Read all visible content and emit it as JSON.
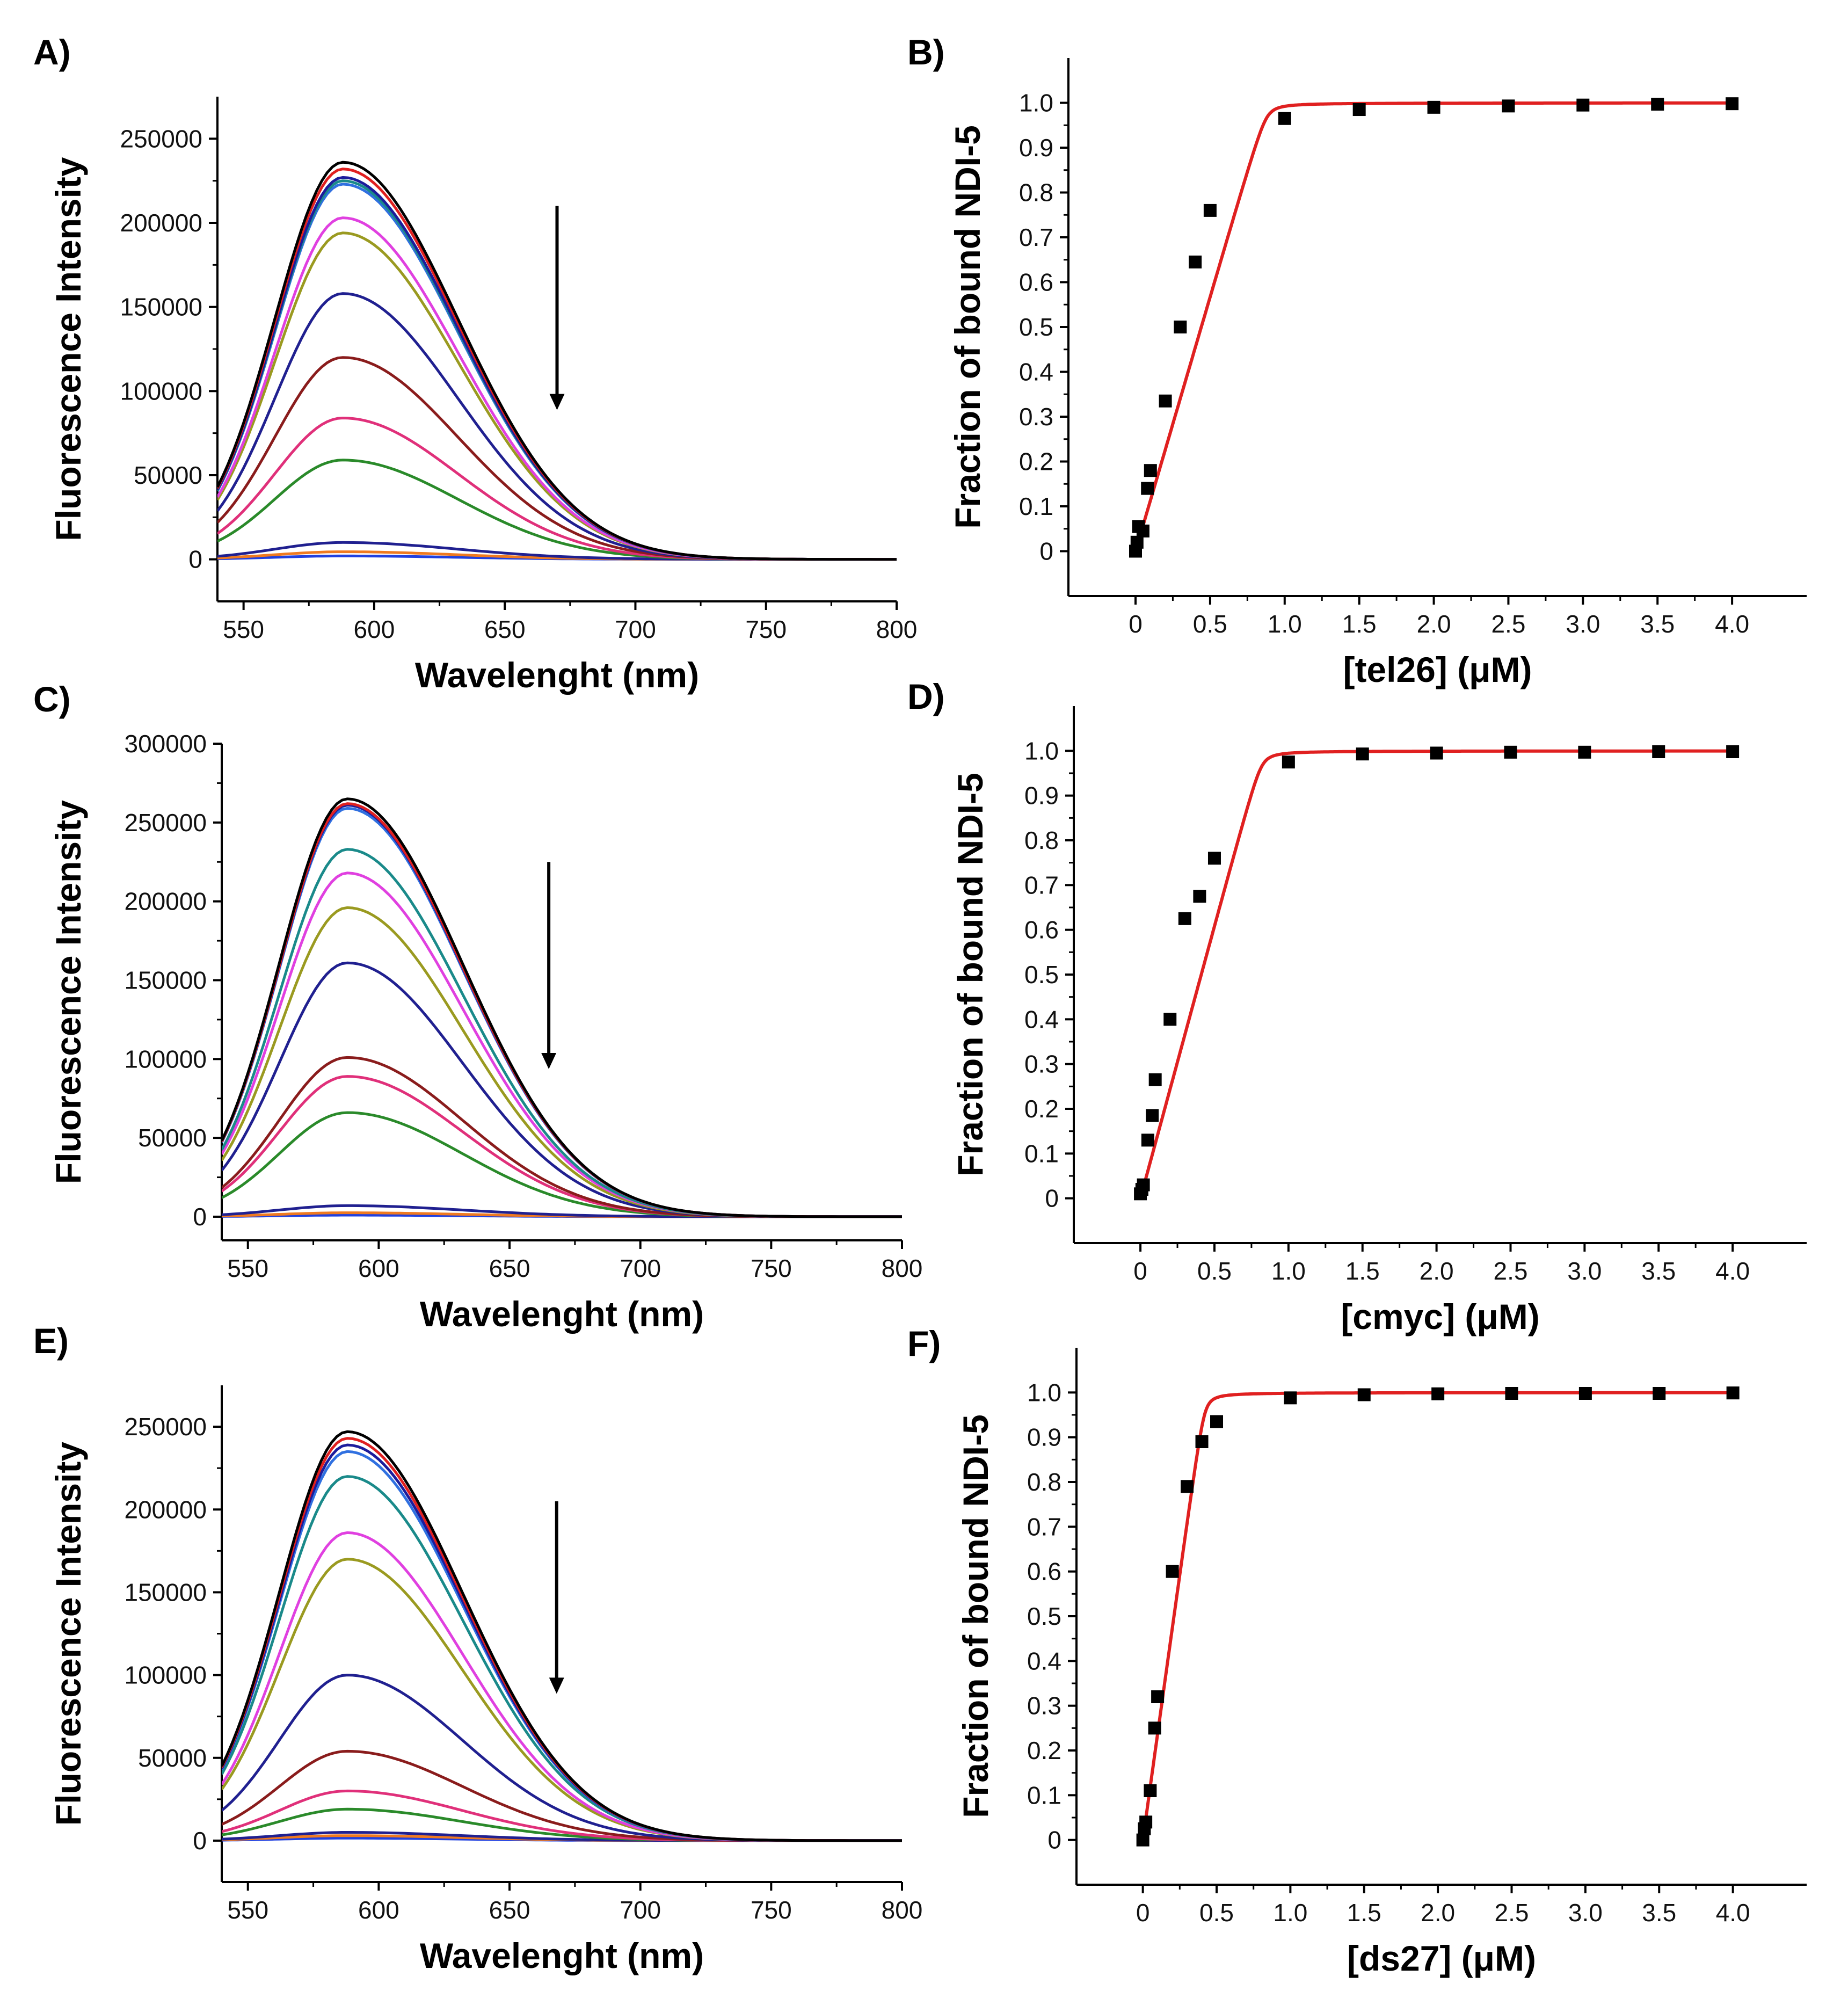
{
  "chart_data": [
    {
      "panel": "A)",
      "type": "line",
      "title": "",
      "xlabel": "Wavelenght (nm)",
      "ylabel": "Fluorescence Intensity",
      "xlim": [
        540,
        800
      ],
      "ylim": [
        -25000,
        275000
      ],
      "xticks": [
        550,
        600,
        650,
        700,
        750,
        800
      ],
      "yticks": [
        0,
        50000,
        100000,
        150000,
        200000,
        250000
      ],
      "peak_x": 588,
      "arrow": {
        "x": 670,
        "y_from": 210000,
        "y_to": 90000
      },
      "series": [
        {
          "name": "black",
          "color": "#000000",
          "peak": 236000
        },
        {
          "name": "red",
          "color": "#e02020",
          "peak": 232000
        },
        {
          "name": "dark-blue",
          "color": "#1c1c9c",
          "peak": 227000
        },
        {
          "name": "teal",
          "color": "#1a8a8a",
          "peak": 225000
        },
        {
          "name": "light-blue",
          "color": "#3070e0",
          "peak": 223000
        },
        {
          "name": "magenta",
          "color": "#e040e0",
          "peak": 203000
        },
        {
          "name": "olive",
          "color": "#9a9a20",
          "peak": 194000
        },
        {
          "name": "navy",
          "color": "#202090",
          "peak": 158000
        },
        {
          "name": "maroon",
          "color": "#8a1c1c",
          "peak": 120000
        },
        {
          "name": "pink",
          "color": "#e0307a",
          "peak": 84000
        },
        {
          "name": "green",
          "color": "#2a8a2a",
          "peak": 59000
        },
        {
          "name": "navy-low",
          "color": "#202090",
          "peak": 10000
        },
        {
          "name": "orange",
          "color": "#f07a20",
          "peak": 4500
        },
        {
          "name": "blue-low",
          "color": "#2040e0",
          "peak": 2000
        }
      ]
    },
    {
      "panel": "B)",
      "type": "scatter",
      "title": "",
      "xlabel": "[tel26] (μM)",
      "ylabel": "Fraction of bound NDI-5",
      "xlim": [
        -0.45,
        4.5
      ],
      "ylim": [
        -0.1,
        1.1
      ],
      "xticks": [
        0,
        0.5,
        1.0,
        1.5,
        2.0,
        2.5,
        3.0,
        3.5,
        4.0
      ],
      "xtick_labels": [
        "0",
        "0.5",
        "1.0",
        "1.5",
        "2.0",
        "2.5",
        "3.0",
        "3.5",
        "4.0"
      ],
      "yticks": [
        0,
        0.1,
        0.2,
        0.3,
        0.4,
        0.5,
        0.6,
        0.7,
        0.8,
        0.9,
        1.0
      ],
      "ytick_labels": [
        "0",
        "0.1",
        "0.2",
        "0.3",
        "0.4",
        "0.5",
        "0.6",
        "0.7",
        "0.8",
        "0.9",
        "1.0"
      ],
      "x": [
        0,
        0.01,
        0.02,
        0.05,
        0.08,
        0.1,
        0.2,
        0.3,
        0.4,
        0.5,
        1.0,
        1.5,
        2.0,
        2.5,
        3.0,
        3.5,
        4.0
      ],
      "y": [
        0,
        0.02,
        0.055,
        0.045,
        0.14,
        0.18,
        0.335,
        0.5,
        0.645,
        0.76,
        0.965,
        0.985,
        0.99,
        0.993,
        0.995,
        0.997,
        0.998
      ],
      "fit": {
        "color": "#e02020",
        "total": 0.88,
        "kd": 0.001
      }
    },
    {
      "panel": "C)",
      "type": "line",
      "title": "",
      "xlabel": "Wavelenght (nm)",
      "ylabel": "Fluorescence Intensity",
      "xlim": [
        540,
        800
      ],
      "ylim": [
        -15000,
        300000
      ],
      "xticks": [
        550,
        600,
        650,
        700,
        750,
        800
      ],
      "yticks": [
        0,
        50000,
        100000,
        150000,
        200000,
        250000,
        300000
      ],
      "peak_x": 588,
      "arrow": {
        "x": 665,
        "y_from": 225000,
        "y_to": 95000
      },
      "series": [
        {
          "name": "black",
          "color": "#000000",
          "peak": 265000
        },
        {
          "name": "red",
          "color": "#e02020",
          "peak": 262000
        },
        {
          "name": "dark-blue",
          "color": "#1c1c9c",
          "peak": 261000
        },
        {
          "name": "light-blue",
          "color": "#3070e0",
          "peak": 259000
        },
        {
          "name": "teal",
          "color": "#1a8a8a",
          "peak": 233000
        },
        {
          "name": "magenta",
          "color": "#e040e0",
          "peak": 218000
        },
        {
          "name": "olive",
          "color": "#9a9a20",
          "peak": 196000
        },
        {
          "name": "navy",
          "color": "#202090",
          "peak": 161000
        },
        {
          "name": "maroon",
          "color": "#8a1c1c",
          "peak": 101000
        },
        {
          "name": "pink",
          "color": "#e0307a",
          "peak": 89000
        },
        {
          "name": "green",
          "color": "#2a8a2a",
          "peak": 66000
        },
        {
          "name": "navy-low",
          "color": "#202090",
          "peak": 7000
        },
        {
          "name": "orange",
          "color": "#f07a20",
          "peak": 2500
        },
        {
          "name": "blue-low",
          "color": "#2040e0",
          "peak": 1000
        }
      ]
    },
    {
      "panel": "D)",
      "type": "scatter",
      "title": "",
      "xlabel": "[cmyc] (μM)",
      "ylabel": "Fraction of bound NDI-5",
      "xlim": [
        -0.45,
        4.5
      ],
      "ylim": [
        -0.1,
        1.1
      ],
      "xticks": [
        0,
        0.5,
        1.0,
        1.5,
        2.0,
        2.5,
        3.0,
        3.5,
        4.0
      ],
      "xtick_labels": [
        "0",
        "0.5",
        "1.0",
        "1.5",
        "2.0",
        "2.5",
        "3.0",
        "3.5",
        "4.0"
      ],
      "yticks": [
        0,
        0.1,
        0.2,
        0.3,
        0.4,
        0.5,
        0.6,
        0.7,
        0.8,
        0.9,
        1.0
      ],
      "ytick_labels": [
        "0",
        "0.1",
        "0.2",
        "0.3",
        "0.4",
        "0.5",
        "0.6",
        "0.7",
        "0.8",
        "0.9",
        "1.0"
      ],
      "x": [
        0,
        0.01,
        0.02,
        0.05,
        0.08,
        0.1,
        0.2,
        0.3,
        0.4,
        0.5,
        1.0,
        1.5,
        2.0,
        2.5,
        3.0,
        3.5,
        4.0
      ],
      "y": [
        0.01,
        0.02,
        0.03,
        0.13,
        0.185,
        0.265,
        0.4,
        0.625,
        0.675,
        0.76,
        0.975,
        0.993,
        0.995,
        0.997,
        0.997,
        0.998,
        0.998
      ],
      "fit": {
        "color": "#e02020",
        "total": 0.82,
        "kd": 0.001
      }
    },
    {
      "panel": "E)",
      "type": "line",
      "title": "",
      "xlabel": "Wavelenght (nm)",
      "ylabel": "Fluorescence Intensity",
      "xlim": [
        540,
        800
      ],
      "ylim": [
        -25000,
        275000
      ],
      "xticks": [
        550,
        600,
        650,
        700,
        750,
        800
      ],
      "yticks": [
        0,
        50000,
        100000,
        150000,
        200000,
        250000
      ],
      "peak_x": 588,
      "arrow": {
        "x": 668,
        "y_from": 205000,
        "y_to": 90000
      },
      "series": [
        {
          "name": "black",
          "color": "#000000",
          "peak": 247000
        },
        {
          "name": "red",
          "color": "#e02020",
          "peak": 243000
        },
        {
          "name": "dark-blue",
          "color": "#1c1c9c",
          "peak": 239000
        },
        {
          "name": "light-blue",
          "color": "#3070e0",
          "peak": 235000
        },
        {
          "name": "teal",
          "color": "#1a8a8a",
          "peak": 220000
        },
        {
          "name": "magenta",
          "color": "#e040e0",
          "peak": 186000
        },
        {
          "name": "olive",
          "color": "#9a9a20",
          "peak": 170000
        },
        {
          "name": "navy",
          "color": "#202090",
          "peak": 100000
        },
        {
          "name": "maroon",
          "color": "#8a1c1c",
          "peak": 54000
        },
        {
          "name": "pink",
          "color": "#e0307a",
          "peak": 30000
        },
        {
          "name": "green",
          "color": "#2a8a2a",
          "peak": 19000
        },
        {
          "name": "navy-low",
          "color": "#202090",
          "peak": 5000
        },
        {
          "name": "orange",
          "color": "#f07a20",
          "peak": 3000
        },
        {
          "name": "blue-low",
          "color": "#2040e0",
          "peak": 1500
        }
      ]
    },
    {
      "panel": "F)",
      "type": "scatter",
      "title": "",
      "xlabel": "[ds27] (μM)",
      "ylabel": "Fraction of bound NDI-5",
      "xlim": [
        -0.45,
        4.5
      ],
      "ylim": [
        -0.1,
        1.1
      ],
      "xticks": [
        0,
        0.5,
        1.0,
        1.5,
        2.0,
        2.5,
        3.0,
        3.5,
        4.0
      ],
      "xtick_labels": [
        "0",
        "0.5",
        "1.0",
        "1.5",
        "2.0",
        "2.5",
        "3.0",
        "3.5",
        "4.0"
      ],
      "yticks": [
        0,
        0.1,
        0.2,
        0.3,
        0.4,
        0.5,
        0.6,
        0.7,
        0.8,
        0.9,
        1.0
      ],
      "ytick_labels": [
        "0",
        "0.1",
        "0.2",
        "0.3",
        "0.4",
        "0.5",
        "0.6",
        "0.7",
        "0.8",
        "0.9",
        "1.0"
      ],
      "x": [
        0,
        0.01,
        0.02,
        0.05,
        0.08,
        0.1,
        0.2,
        0.3,
        0.4,
        0.5,
        1.0,
        1.5,
        2.0,
        2.5,
        3.0,
        3.5,
        4.0
      ],
      "y": [
        0,
        0.025,
        0.04,
        0.11,
        0.25,
        0.32,
        0.6,
        0.79,
        0.89,
        0.935,
        0.988,
        0.995,
        0.997,
        0.998,
        0.998,
        0.998,
        0.999
      ],
      "fit": {
        "color": "#e02020",
        "total": 0.42,
        "kd": 0.001
      }
    }
  ]
}
